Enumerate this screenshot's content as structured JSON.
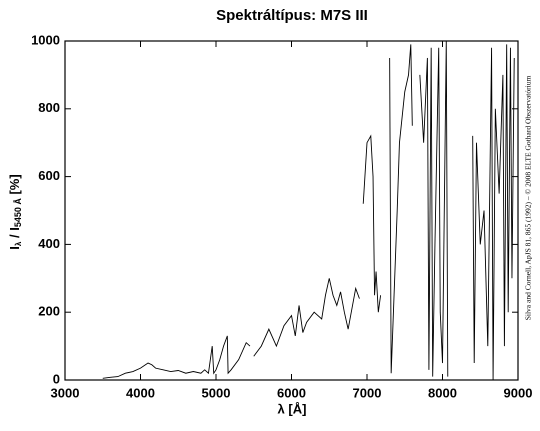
{
  "chart_data": {
    "type": "line",
    "title": "Spektráltípus: M7S III",
    "xlabel": "λ [Å]",
    "ylabel": {
      "main": "I",
      "sub1": "λ",
      "mid": " / I",
      "sub2": "5450 Å",
      "tail": " [%]"
    },
    "credit": "Silva and Cornell, ApJS 81, 865 (1992) – © 2008 ELTE Gothard Obszervatórium",
    "color": "#000000",
    "xlim": [
      3000,
      9000
    ],
    "xticks": [
      3000,
      4000,
      5000,
      6000,
      7000,
      8000,
      9000
    ],
    "ylim": [
      0,
      1000
    ],
    "yticks": [
      0,
      200,
      400,
      600,
      800,
      1000
    ],
    "x": [
      3500,
      3600,
      3700,
      3800,
      3900,
      4000,
      4100,
      4150,
      4200,
      4300,
      4400,
      4500,
      4600,
      4700,
      4800,
      4850,
      4900,
      4950,
      4970,
      5000,
      5050,
      5100,
      5150,
      5160,
      5200,
      5300,
      5400,
      5450,
      5470,
      5500,
      5600,
      5700,
      5800,
      5900,
      6000,
      6050,
      6100,
      6150,
      6200,
      6300,
      6400,
      6450,
      6500,
      6550,
      6600,
      6650,
      6700,
      6750,
      6800,
      6850,
      6900,
      6920,
      6950,
      7000,
      7050,
      7080,
      7100,
      7120,
      7150,
      7180,
      7250,
      7300,
      7320,
      7350,
      7400,
      7430,
      7500,
      7550,
      7580,
      7600,
      7650,
      7700,
      7750,
      7800,
      7820,
      7850,
      7870,
      7900,
      7950,
      7970,
      8000,
      8050,
      8070,
      8200,
      8400,
      8420,
      8450,
      8500,
      8550,
      8600,
      8650,
      8670,
      8700,
      8750,
      8800,
      8820,
      8850,
      8870,
      8900,
      8920,
      8950
    ],
    "values": [
      5,
      8,
      10,
      20,
      25,
      35,
      50,
      45,
      35,
      30,
      25,
      28,
      20,
      25,
      20,
      30,
      20,
      100,
      20,
      30,
      60,
      100,
      130,
      20,
      30,
      60,
      110,
      100,
      null,
      70,
      100,
      150,
      100,
      160,
      190,
      130,
      220,
      140,
      170,
      200,
      180,
      250,
      300,
      250,
      220,
      260,
      200,
      150,
      210,
      270,
      240,
      null,
      520,
      700,
      720,
      600,
      250,
      320,
      200,
      250,
      null,
      950,
      20,
      200,
      500,
      700,
      850,
      900,
      990,
      750,
      null,
      900,
      700,
      950,
      30,
      980,
      10,
      400,
      980,
      200,
      50,
      1000,
      10,
      null,
      720,
      50,
      700,
      400,
      500,
      100,
      980,
      0,
      800,
      550,
      900,
      100,
      990,
      200,
      980,
      300,
      950
    ]
  }
}
